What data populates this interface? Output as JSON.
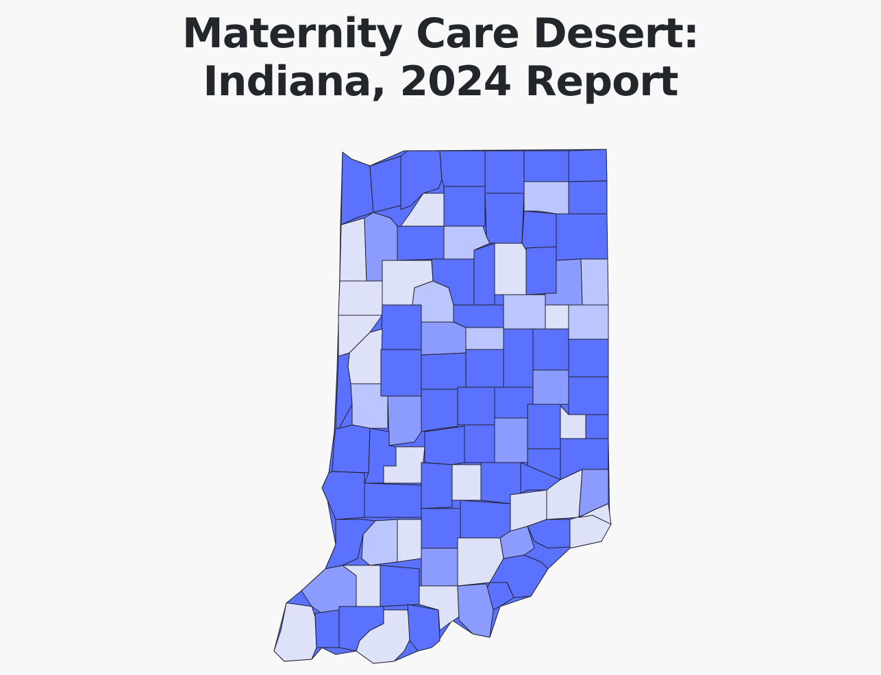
{
  "title": {
    "line1": "Maternity Care Desert:",
    "line2": "Indiana, 2024 Report"
  },
  "colors": {
    "level_1": "#5b72fe",
    "level_2": "#8c9bfe",
    "level_3": "#bcc6fe",
    "level_4": "#dde2f8",
    "border": "#20202a"
  }
}
